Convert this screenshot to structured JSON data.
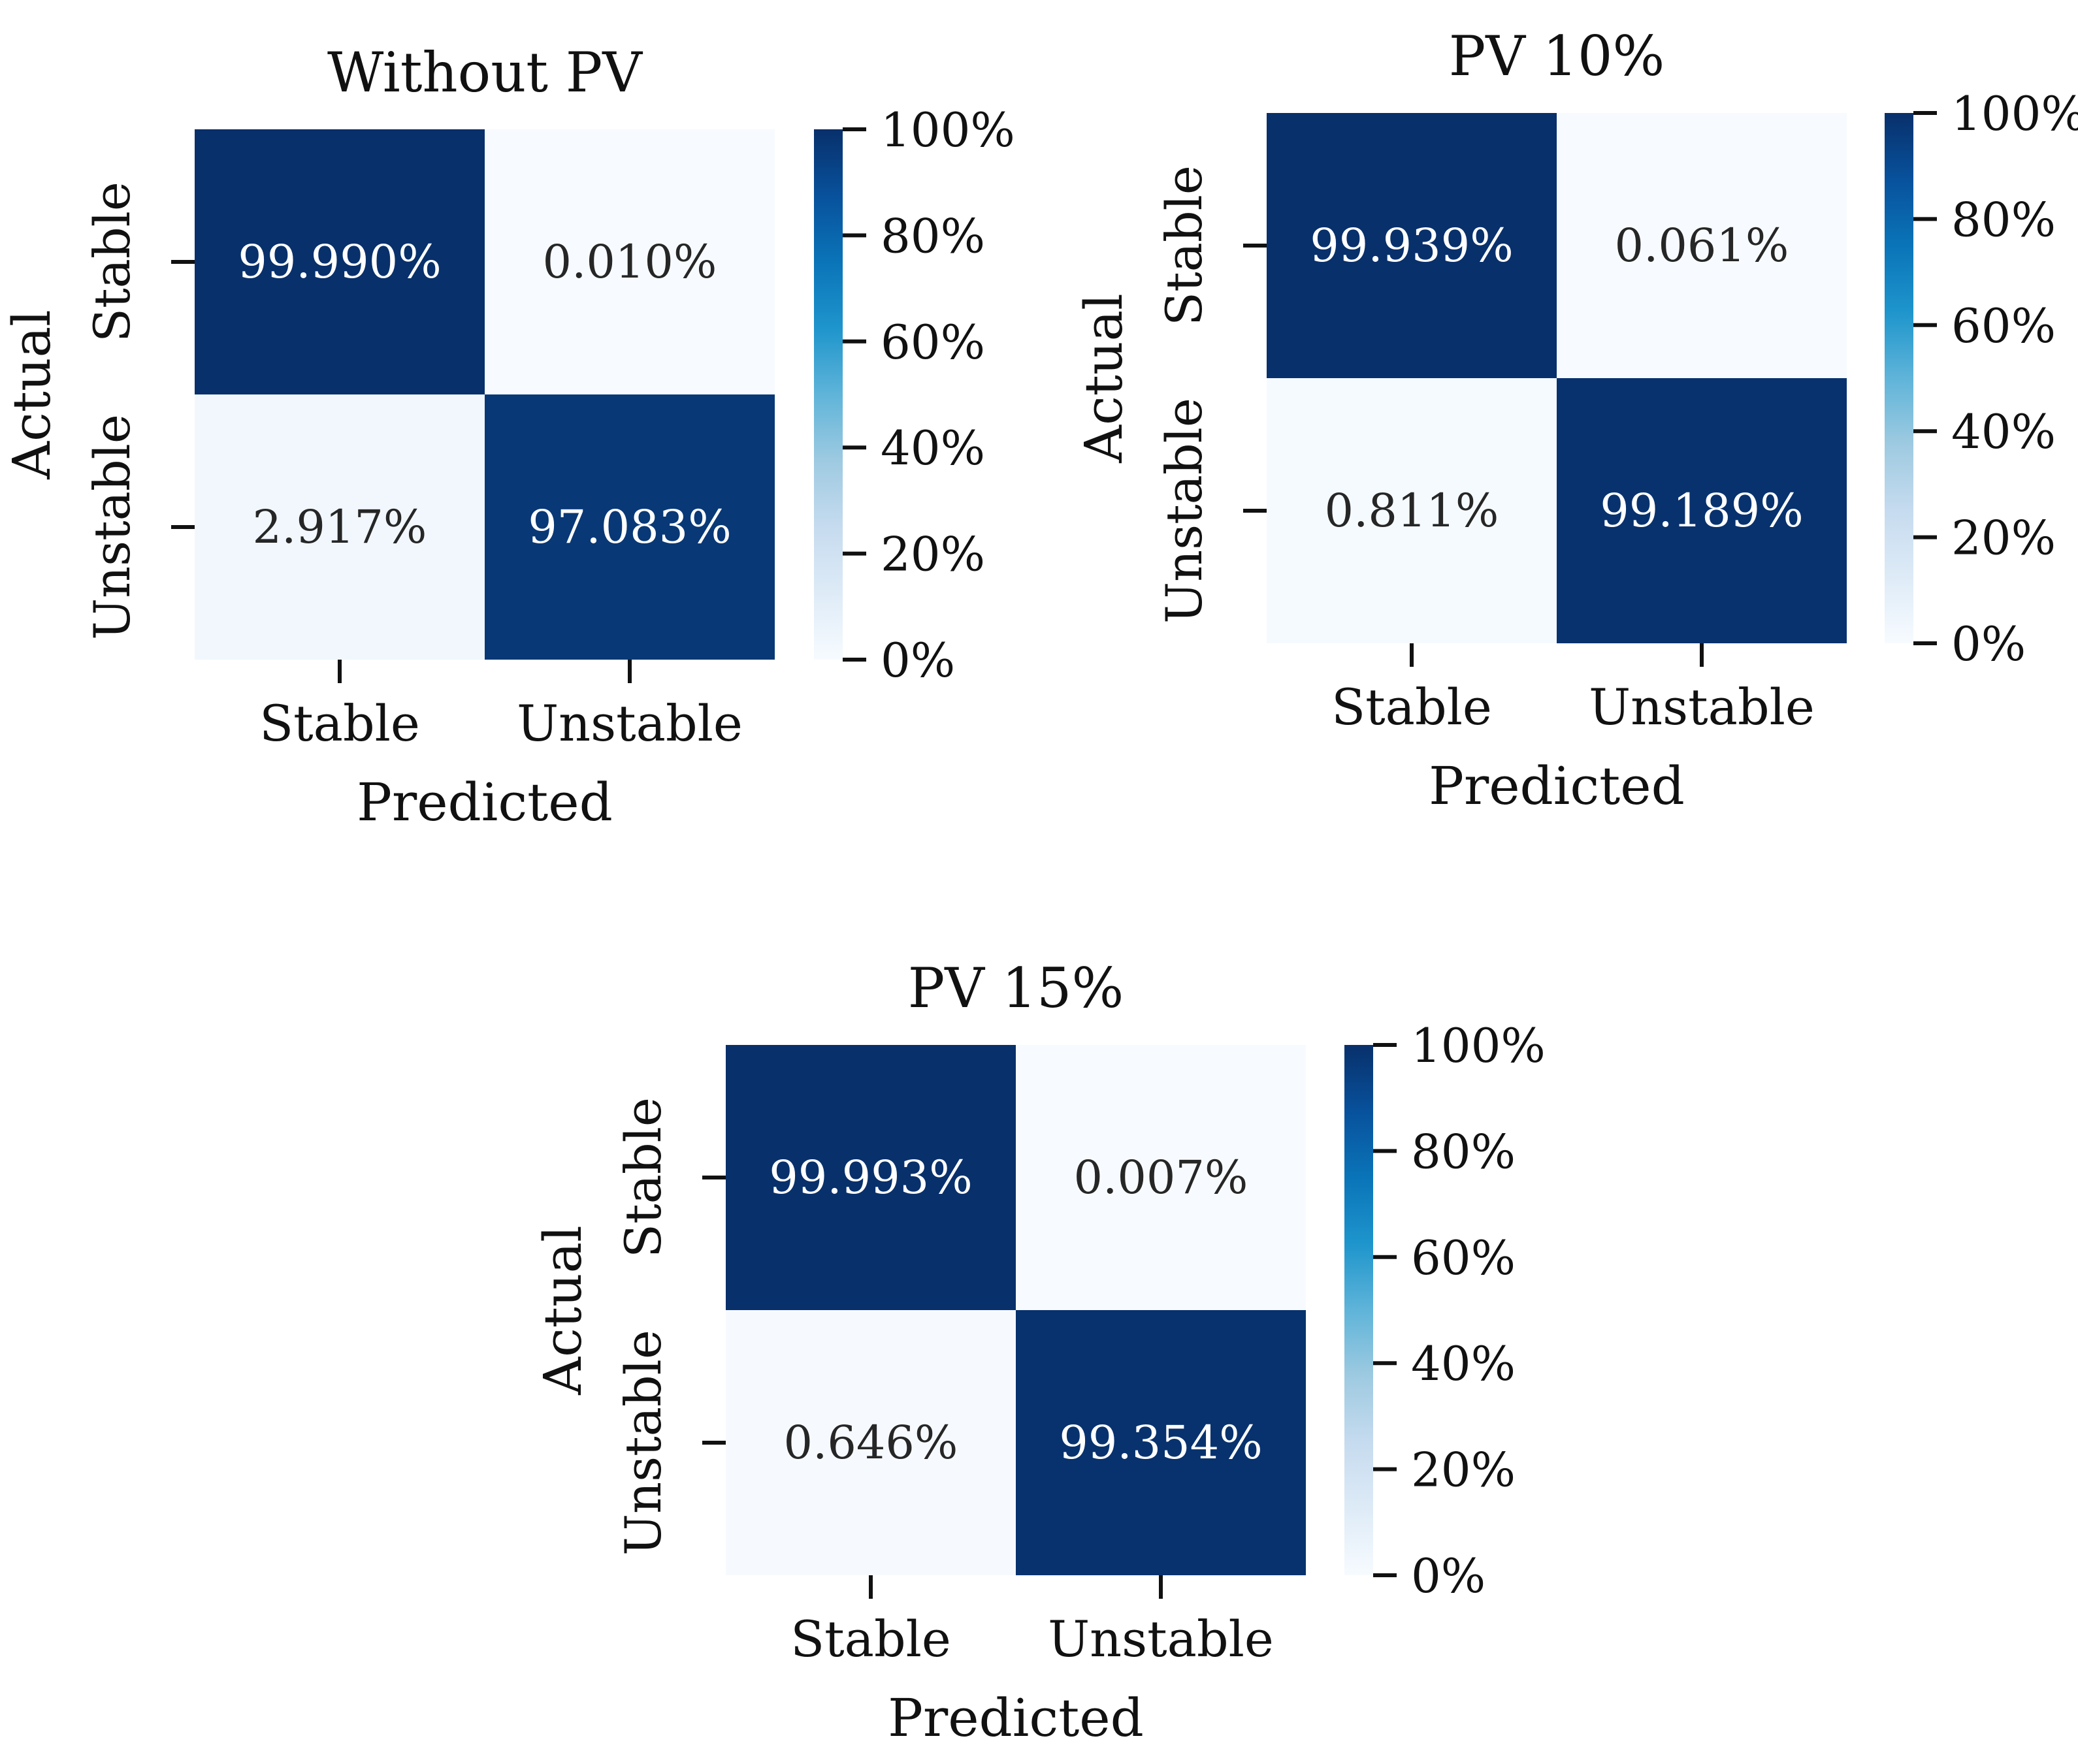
{
  "chart_data": [
    {
      "type": "heatmap",
      "title": "Without PV",
      "xlabel": "Predicted",
      "ylabel": "Actual",
      "x_categories": [
        "Stable",
        "Unstable"
      ],
      "y_categories": [
        "Stable",
        "Unstable"
      ],
      "values": [
        [
          99.99,
          0.01
        ],
        [
          2.917,
          97.083
        ]
      ],
      "cell_labels": [
        [
          "99.990%",
          "0.010%"
        ],
        [
          "2.917%",
          "97.083%"
        ]
      ],
      "colorbar": {
        "range": [
          0,
          100
        ],
        "ticks": [
          0,
          20,
          40,
          60,
          80,
          100
        ],
        "tick_labels": [
          "0%",
          "20%",
          "40%",
          "60%",
          "80%",
          "100%"
        ],
        "colormap": "Blues"
      }
    },
    {
      "type": "heatmap",
      "title": "PV 10%",
      "xlabel": "Predicted",
      "ylabel": "Actual",
      "x_categories": [
        "Stable",
        "Unstable"
      ],
      "y_categories": [
        "Stable",
        "Unstable"
      ],
      "values": [
        [
          99.939,
          0.061
        ],
        [
          0.811,
          99.189
        ]
      ],
      "cell_labels": [
        [
          "99.939%",
          "0.061%"
        ],
        [
          "0.811%",
          "99.189%"
        ]
      ],
      "colorbar": {
        "range": [
          0,
          100
        ],
        "ticks": [
          0,
          20,
          40,
          60,
          80,
          100
        ],
        "tick_labels": [
          "0%",
          "20%",
          "40%",
          "60%",
          "80%",
          "100%"
        ],
        "colormap": "Blues"
      }
    },
    {
      "type": "heatmap",
      "title": "PV 15%",
      "xlabel": "Predicted",
      "ylabel": "Actual",
      "x_categories": [
        "Stable",
        "Unstable"
      ],
      "y_categories": [
        "Stable",
        "Unstable"
      ],
      "values": [
        [
          99.993,
          0.007
        ],
        [
          0.646,
          99.354
        ]
      ],
      "cell_labels": [
        [
          "99.993%",
          "0.007%"
        ],
        [
          "0.646%",
          "99.354%"
        ]
      ],
      "colorbar": {
        "range": [
          0,
          100
        ],
        "ticks": [
          0,
          20,
          40,
          60,
          80,
          100
        ],
        "tick_labels": [
          "0%",
          "20%",
          "40%",
          "60%",
          "80%",
          "100%"
        ],
        "colormap": "Blues"
      }
    }
  ]
}
